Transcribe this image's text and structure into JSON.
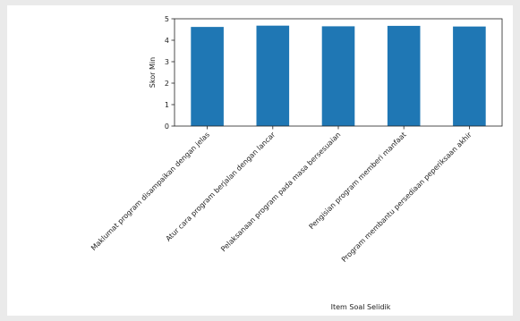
{
  "chart_data": {
    "type": "bar",
    "title": "",
    "xlabel": "Item Soal Selidik",
    "ylabel": "Skor Min",
    "ylim": [
      0,
      5
    ],
    "yticks": [
      0,
      1,
      2,
      3,
      4,
      5
    ],
    "categories": [
      "Maklumat program disampaikan dengan jelas",
      "Atur cara program berjalan dengan lancar",
      "Pelaksanaan program pada masa bersesuaian",
      "Pengisian program memberi manfaat",
      "Program membantu persediaan peperiksaan akhir"
    ],
    "values": [
      4.62,
      4.68,
      4.65,
      4.67,
      4.64
    ],
    "bar_color": "#1f77b4",
    "grid": false,
    "legend": "none"
  }
}
